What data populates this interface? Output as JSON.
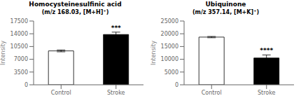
{
  "chart_data": [
    {
      "type": "bar",
      "title": "Homocysteinesulfinic acid",
      "subtitle": "(m/z 168.03, [M+H]⁺)",
      "categories": [
        "Control",
        "Stroke"
      ],
      "values": [
        9300,
        13800
      ],
      "errors": [
        250,
        650
      ],
      "colors": [
        "white",
        "black"
      ],
      "ylabel": "Intensity",
      "ylim": [
        0,
        17500
      ],
      "yticks": [
        0,
        3500,
        7000,
        10500,
        14000,
        17500
      ],
      "grid": false,
      "annotations": [
        {
          "text": "***",
          "category": "Stroke"
        }
      ]
    },
    {
      "type": "bar",
      "title": "Ubiquinone",
      "subtitle": "(m/z 357.14, [M+K]⁺)",
      "categories": [
        "Control",
        "Stroke"
      ],
      "values": [
        18700,
        10500
      ],
      "errors": [
        250,
        1200
      ],
      "colors": [
        "white",
        "black"
      ],
      "ylabel": "Intensity",
      "ylim": [
        0,
        25000
      ],
      "yticks": [
        0,
        5000,
        10000,
        15000,
        20000,
        25000
      ],
      "grid": false,
      "annotations": [
        {
          "text": "****",
          "category": "Stroke"
        }
      ]
    }
  ]
}
